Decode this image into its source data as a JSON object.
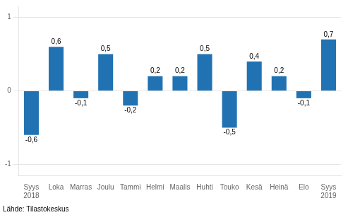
{
  "chart_data": {
    "type": "bar",
    "categories": [
      "Syys\n2018",
      "Loka",
      "Marras",
      "Joulu",
      "Tammi",
      "Helmi",
      "Maalis",
      "Huhti",
      "Touko",
      "Kesä",
      "Heinä",
      "Elo",
      "Syys\n2019"
    ],
    "values": [
      -0.6,
      0.6,
      -0.1,
      0.5,
      -0.2,
      0.2,
      0.2,
      0.5,
      -0.5,
      0.4,
      0.2,
      -0.1,
      0.7
    ],
    "value_labels": [
      "-0,6",
      "0,6",
      "-0,1",
      "0,5",
      "-0,2",
      "0,2",
      "0,2",
      "0,5",
      "-0,5",
      "0,4",
      "0,2",
      "-0,1",
      "0,7"
    ],
    "data_labels": true,
    "color": "#2072B2",
    "ylim": [
      -1.15,
      1.15
    ],
    "yticks": [
      -1,
      0,
      1
    ],
    "grid": true,
    "source": "Lähde: Tilastokeskus"
  }
}
